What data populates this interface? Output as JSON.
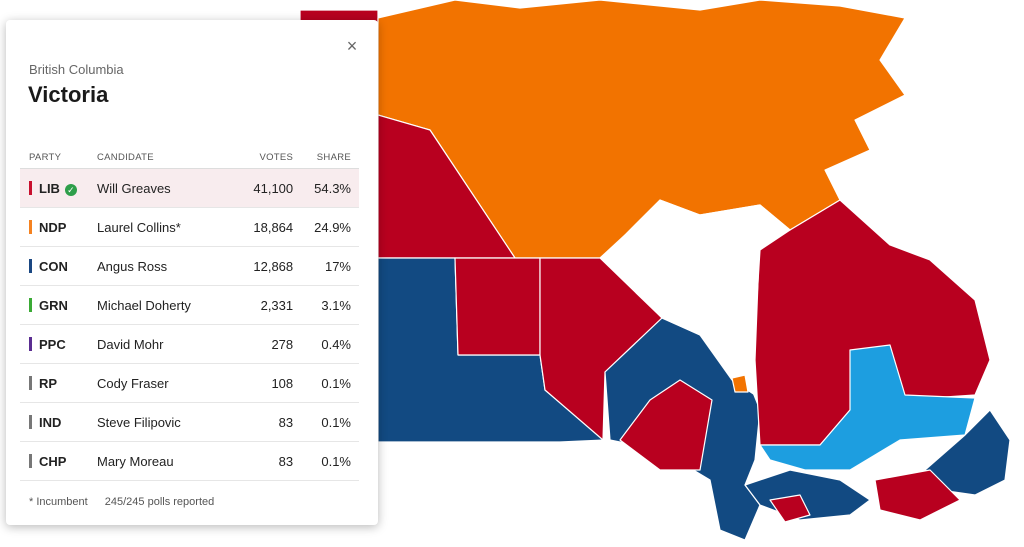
{
  "panel": {
    "province": "British Columbia",
    "riding": "Victoria",
    "close_label": "×"
  },
  "table": {
    "headers": {
      "party": "PARTY",
      "candidate": "CANDIDATE",
      "votes": "VOTES",
      "share": "SHARE"
    },
    "rows": [
      {
        "party": "LIB",
        "color": "#c8102e",
        "candidate": "Will Greaves",
        "votes": "41,100",
        "share": "54.3%",
        "winner": true
      },
      {
        "party": "NDP",
        "color": "#f58220",
        "candidate": "Laurel Collins*",
        "votes": "18,864",
        "share": "24.9%"
      },
      {
        "party": "CON",
        "color": "#1a4782",
        "candidate": "Angus Ross",
        "votes": "12,868",
        "share": "17%"
      },
      {
        "party": "GRN",
        "color": "#3aaa35",
        "candidate": "Michael Doherty",
        "votes": "2,331",
        "share": "3.1%"
      },
      {
        "party": "PPC",
        "color": "#5a2d91",
        "candidate": "David Mohr",
        "votes": "278",
        "share": "0.4%"
      },
      {
        "party": "RP",
        "color": "#777777",
        "candidate": "Cody Fraser",
        "votes": "108",
        "share": "0.1%"
      },
      {
        "party": "IND",
        "color": "#777777",
        "candidate": "Steve Filipovic",
        "votes": "83",
        "share": "0.1%"
      },
      {
        "party": "CHP",
        "color": "#777777",
        "candidate": "Mary Moreau",
        "votes": "83",
        "share": "0.1%"
      }
    ]
  },
  "footer": {
    "incumbent_note": "* Incumbent",
    "polls_reported": "245/245 polls reported"
  },
  "colors": {
    "liberal": "#b8001f",
    "ndp": "#f27300",
    "conservative": "#124a82",
    "bloc": "#1d9ee0",
    "winner_row_bg": "#f8ecee"
  }
}
